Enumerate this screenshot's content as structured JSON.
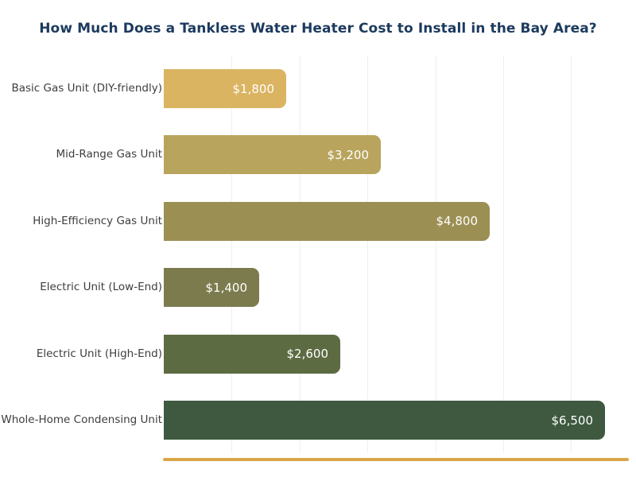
{
  "chart": {
    "background": "#ffffff",
    "title_color": "#1c3a5e",
    "grid_color": "#efefef",
    "baseline_color": "#d9a647",
    "category_label_color": "#3d3d3d",
    "value_label_color": "#ffffff"
  },
  "chart_data": {
    "type": "bar",
    "orientation": "horizontal",
    "title": "How Much Does a Tankless Water Heater Cost to Install in the Bay Area?",
    "categories": [
      "Basic Gas Unit (DIY-friendly)",
      "Mid-Range Gas Unit",
      "High-Efficiency Gas Unit",
      "Electric Unit (Low-End)",
      "Electric Unit (High-End)",
      "Whole-Home Condensing Unit"
    ],
    "values": [
      1800,
      3200,
      4800,
      1400,
      2600,
      6500
    ],
    "value_labels": [
      "$1,800",
      "$3,200",
      "$4,800",
      "$1,400",
      "$2,600",
      "$6,500"
    ],
    "bar_colors": [
      "#dbb462",
      "#b8a45c",
      "#9c8f53",
      "#7c7b4d",
      "#5d6b43",
      "#3e5940"
    ],
    "xlabel": "",
    "ylabel": "",
    "xlim": [
      0,
      6850
    ],
    "gridline_values": [
      1000,
      2000,
      3000,
      4000,
      5000,
      6000
    ],
    "grid": "vertical",
    "legend": "none",
    "value_labels_position": "inside-right"
  }
}
